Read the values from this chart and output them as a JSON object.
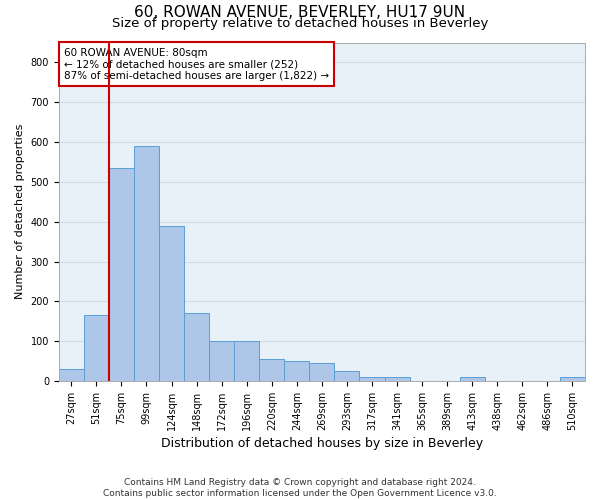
{
  "title_line1": "60, ROWAN AVENUE, BEVERLEY, HU17 9UN",
  "title_line2": "Size of property relative to detached houses in Beverley",
  "xlabel": "Distribution of detached houses by size in Beverley",
  "ylabel": "Number of detached properties",
  "footer": "Contains HM Land Registry data © Crown copyright and database right 2024.\nContains public sector information licensed under the Open Government Licence v3.0.",
  "categories": [
    "27sqm",
    "51sqm",
    "75sqm",
    "99sqm",
    "124sqm",
    "148sqm",
    "172sqm",
    "196sqm",
    "220sqm",
    "244sqm",
    "269sqm",
    "293sqm",
    "317sqm",
    "341sqm",
    "365sqm",
    "389sqm",
    "413sqm",
    "438sqm",
    "462sqm",
    "486sqm",
    "510sqm"
  ],
  "values": [
    30,
    165,
    535,
    590,
    390,
    170,
    100,
    100,
    55,
    50,
    45,
    25,
    10,
    10,
    0,
    0,
    10,
    0,
    0,
    0,
    10
  ],
  "bar_color": "#aec6e8",
  "bar_edge_color": "#5a9fd4",
  "annotation_box_text": "60 ROWAN AVENUE: 80sqm\n← 12% of detached houses are smaller (252)\n87% of semi-detached houses are larger (1,822) →",
  "vline_color": "#cc0000",
  "box_edge_color": "#cc0000",
  "ylim": [
    0,
    850
  ],
  "yticks": [
    0,
    100,
    200,
    300,
    400,
    500,
    600,
    700,
    800
  ],
  "grid_color": "#d0dce8",
  "bg_color": "#e8f0f8",
  "title1_fontsize": 11,
  "title2_fontsize": 9.5,
  "xlabel_fontsize": 9,
  "ylabel_fontsize": 8,
  "footer_fontsize": 6.5,
  "tick_fontsize": 7,
  "annotation_fontsize": 7.5
}
